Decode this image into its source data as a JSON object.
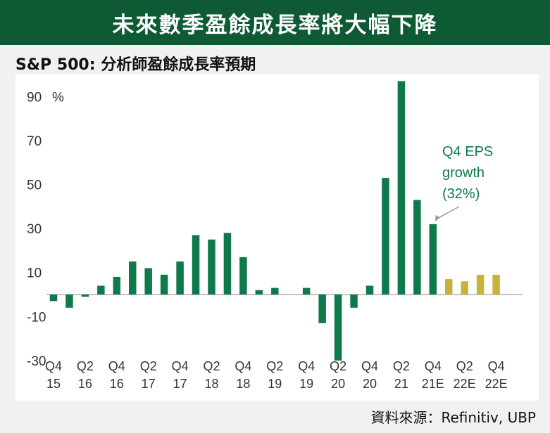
{
  "header": {
    "title": "未來數季盈餘成長率將大幅下降"
  },
  "subtitle": {
    "prefix": "S&P 500:",
    "text": " 分析師盈餘成長率預期"
  },
  "source": "資料來源：Refinitiv, UBP",
  "colors": {
    "banner": "#0e5a35",
    "actual": "#0e7a4a",
    "estimate": "#c4b43c",
    "arrow": "#999999"
  },
  "chart_data": {
    "type": "bar",
    "unit": "%",
    "ylim": [
      -30,
      100
    ],
    "yticks": [
      90,
      70,
      50,
      30,
      10,
      -10,
      -30
    ],
    "values": [
      -3,
      -6,
      -1,
      4,
      8,
      15,
      12,
      9,
      15,
      27,
      25,
      28,
      17,
      2,
      3,
      null,
      3,
      -13,
      -30,
      -6,
      4,
      53,
      97,
      43,
      32,
      7,
      6,
      9,
      9
    ],
    "estimate_start_index": 25,
    "category_labels": [
      {
        "index": 0,
        "q": "Q4",
        "y": "15"
      },
      {
        "index": 2,
        "q": "Q2",
        "y": "16"
      },
      {
        "index": 4,
        "q": "Q4",
        "y": "16"
      },
      {
        "index": 6,
        "q": "Q2",
        "y": "17"
      },
      {
        "index": 8,
        "q": "Q4",
        "y": "17"
      },
      {
        "index": 10,
        "q": "Q2",
        "y": "18"
      },
      {
        "index": 12,
        "q": "Q4",
        "y": "18"
      },
      {
        "index": 14,
        "q": "Q2",
        "y": "19"
      },
      {
        "index": 16,
        "q": "Q4",
        "y": "19"
      },
      {
        "index": 18,
        "q": "Q2",
        "y": "20"
      },
      {
        "index": 20,
        "q": "Q4",
        "y": "20"
      },
      {
        "index": 22,
        "q": "Q2",
        "y": "21"
      },
      {
        "index": 24,
        "q": "Q4",
        "y": "21E"
      },
      {
        "index": 26,
        "q": "Q2",
        "y": "22E"
      },
      {
        "index": 28,
        "q": "Q4",
        "y": "22E"
      }
    ],
    "annotation": {
      "lines": [
        "Q4 EPS",
        "growth",
        "(32%)"
      ],
      "target_index": 24
    }
  }
}
